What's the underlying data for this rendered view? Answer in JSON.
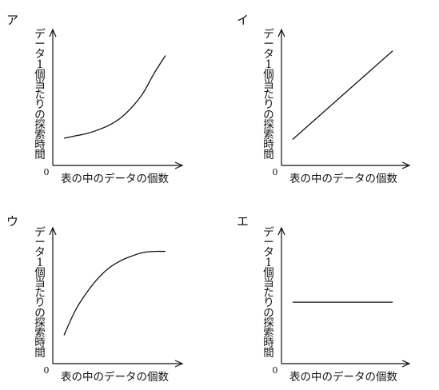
{
  "charts": [
    {
      "id": "a",
      "panel_label": "ア",
      "ylabel": "データ1個当たりの探索時間",
      "xlabel": "表の中のデータの個数",
      "origin_label": "0",
      "chart_data": {
        "type": "line",
        "shape": "exponential-increase",
        "x": [
          0.1,
          0.2,
          0.3,
          0.4,
          0.5,
          0.6,
          0.7,
          0.8,
          0.9,
          1.0
        ],
        "y": [
          0.23,
          0.25,
          0.27,
          0.3,
          0.34,
          0.4,
          0.49,
          0.61,
          0.78,
          0.93
        ],
        "xlim": [
          0,
          1.15
        ],
        "ylim": [
          0,
          1.15
        ],
        "ticks": "none"
      }
    },
    {
      "id": "i",
      "panel_label": "イ",
      "ylabel": "データ1個当たりの探索時間",
      "xlabel": "表の中のデータの個数",
      "origin_label": "0",
      "chart_data": {
        "type": "line",
        "shape": "linear-increase",
        "x": [
          0.1,
          1.0
        ],
        "y": [
          0.22,
          0.97
        ],
        "xlim": [
          0,
          1.15
        ],
        "ylim": [
          0,
          1.15
        ],
        "ticks": "none"
      }
    },
    {
      "id": "u",
      "panel_label": "ウ",
      "ylabel": "データ1個当たりの探索時間",
      "xlabel": "表の中のデータの個数",
      "origin_label": "0",
      "chart_data": {
        "type": "line",
        "shape": "increase-then-level-off",
        "x": [
          0.1,
          0.2,
          0.3,
          0.4,
          0.5,
          0.6,
          0.7,
          0.8,
          0.9,
          1.0
        ],
        "y": [
          0.24,
          0.45,
          0.6,
          0.72,
          0.81,
          0.87,
          0.91,
          0.94,
          0.95,
          0.95
        ],
        "xlim": [
          0,
          1.15
        ],
        "ylim": [
          0,
          1.15
        ],
        "ticks": "none"
      }
    },
    {
      "id": "e",
      "panel_label": "エ",
      "ylabel": "データ1個当たりの探索時間",
      "xlabel": "表の中のデータの個数",
      "origin_label": "0",
      "chart_data": {
        "type": "line",
        "shape": "constant",
        "x": [
          0.1,
          1.0
        ],
        "y": [
          0.52,
          0.52
        ],
        "xlim": [
          0,
          1.15
        ],
        "ylim": [
          0,
          1.15
        ],
        "ticks": "none"
      }
    }
  ]
}
